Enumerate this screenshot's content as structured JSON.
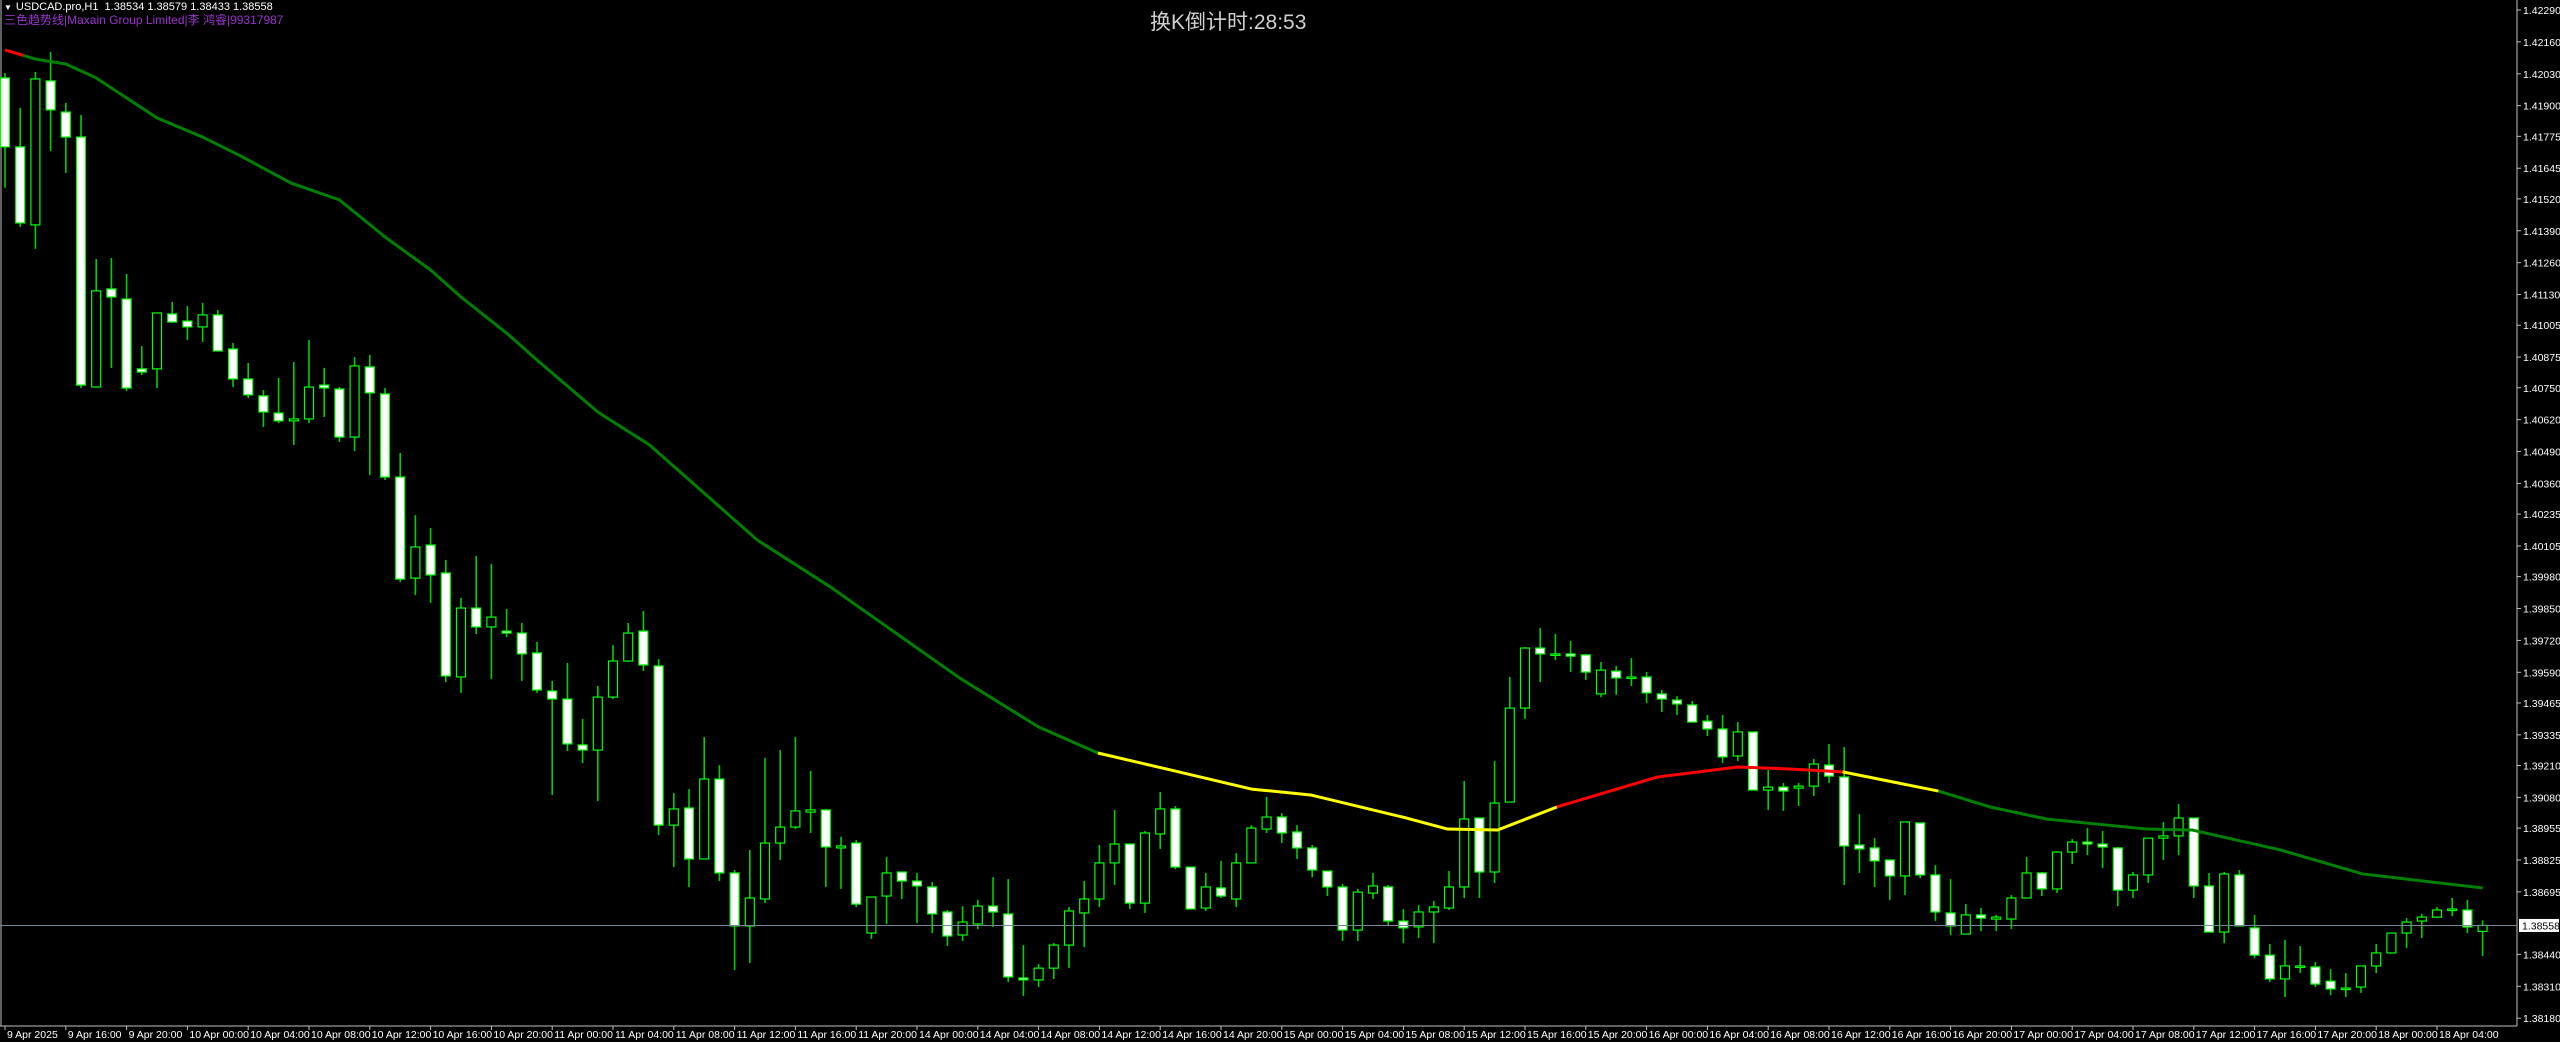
{
  "header": {
    "symbol_line": "USDCAD.pro,H1  1.38534 1.38579 1.38433 1.38558",
    "indicator_line": "三色趋势线|Maxain Group Limited|李 鸿睿|99317987",
    "countdown": "换K倒计时:28:53",
    "menu_icon": "triangle-down-icon"
  },
  "colors": {
    "background": "#000000",
    "candle_outline": "#00ff00",
    "bear_body": "#ffffff",
    "bull_body": "#000000",
    "ma_green": "#008000",
    "ma_yellow": "#ffff00",
    "ma_red": "#ff0000",
    "price_line": "#778899",
    "indicator_text": "#9a32cd"
  },
  "chart_data": {
    "type": "candlestick",
    "symbol": "USDCAD.pro",
    "timeframe": "H1",
    "current_price": 1.38558,
    "ylim": [
      1.3818,
      1.4229
    ],
    "grid": false,
    "price_ticks": [
      "1.42290",
      "1.42160",
      "1.42030",
      "1.41900",
      "1.41775",
      "1.41645",
      "1.41520",
      "1.41390",
      "1.41260",
      "1.41130",
      "1.41005",
      "1.40875",
      "1.40750",
      "1.40620",
      "1.40490",
      "1.40360",
      "1.40235",
      "1.40105",
      "1.39980",
      "1.39850",
      "1.39720",
      "1.39590",
      "1.39465",
      "1.39335",
      "1.39210",
      "1.39080",
      "1.38955",
      "1.38825",
      "1.38695",
      "1.38440",
      "1.38310",
      "1.38180"
    ],
    "time_labels": [
      "9 Apr 2025",
      "9 Apr 16:00",
      "9 Apr 20:00",
      "10 Apr 00:00",
      "10 Apr 04:00",
      "10 Apr 08:00",
      "10 Apr 12:00",
      "10 Apr 16:00",
      "10 Apr 20:00",
      "11 Apr 00:00",
      "11 Apr 04:00",
      "11 Apr 08:00",
      "11 Apr 12:00",
      "11 Apr 16:00",
      "11 Apr 20:00",
      "14 Apr 00:00",
      "14 Apr 04:00",
      "14 Apr 08:00",
      "14 Apr 12:00",
      "14 Apr 16:00",
      "14 Apr 20:00",
      "15 Apr 00:00",
      "15 Apr 04:00",
      "15 Apr 08:00",
      "15 Apr 12:00",
      "15 Apr 16:00",
      "15 Apr 20:00",
      "16 Apr 00:00",
      "16 Apr 04:00",
      "16 Apr 08:00",
      "16 Apr 12:00",
      "16 Apr 16:00",
      "16 Apr 20:00",
      "17 Apr 00:00",
      "17 Apr 04:00",
      "17 Apr 08:00",
      "17 Apr 12:00",
      "17 Apr 16:00",
      "17 Apr 20:00",
      "18 Apr 00:00",
      "18 Apr 04:00"
    ],
    "ohlc_fields": [
      "open",
      "high",
      "low",
      "close"
    ],
    "candles": [
      [
        1.42013,
        1.42033,
        1.41565,
        1.41732
      ],
      [
        1.41732,
        1.41891,
        1.41406,
        1.41422
      ],
      [
        1.41414,
        1.42037,
        1.41316,
        1.42009
      ],
      [
        1.42001,
        1.42119,
        1.41715,
        1.41883
      ],
      [
        1.41874,
        1.41911,
        1.41626,
        1.41772
      ],
      [
        1.41772,
        1.41862,
        1.40749,
        1.40761
      ],
      [
        1.40753,
        1.41275,
        1.40753,
        1.41145
      ],
      [
        1.41153,
        1.41279,
        1.40831,
        1.4112
      ],
      [
        1.41112,
        1.41214,
        1.40737,
        1.40749
      ],
      [
        1.40827,
        1.4092,
        1.40802,
        1.40814
      ],
      [
        1.40827,
        1.41055,
        1.40749,
        1.41055
      ],
      [
        1.41051,
        1.411,
        1.41014,
        1.41018
      ],
      [
        1.41022,
        1.41083,
        1.40945,
        1.40998
      ],
      [
        1.40998,
        1.41096,
        1.40937,
        1.41047
      ],
      [
        1.41047,
        1.41067,
        1.409,
        1.409
      ],
      [
        1.40908,
        1.40933,
        1.40753,
        1.40786
      ],
      [
        1.40786,
        1.40851,
        1.40708,
        1.40721
      ],
      [
        1.40717,
        1.40741,
        1.4059,
        1.40651
      ],
      [
        1.40647,
        1.4079,
        1.40606,
        1.40615
      ],
      [
        1.40615,
        1.40855,
        1.40517,
        1.40623
      ],
      [
        1.40623,
        1.40945,
        1.40606,
        1.40753
      ],
      [
        1.40761,
        1.40831,
        1.40631,
        1.40749
      ],
      [
        1.40745,
        1.40753,
        1.40529,
        1.40549
      ],
      [
        1.40549,
        1.40875,
        1.40492,
        1.40839
      ],
      [
        1.40835,
        1.40884,
        1.40394,
        1.40729
      ],
      [
        1.40725,
        1.40749,
        1.40374,
        1.40386
      ],
      [
        1.40386,
        1.40484,
        1.39958,
        1.3997
      ],
      [
        1.39974,
        1.40231,
        1.39905,
        1.40101
      ],
      [
        1.40109,
        1.40178,
        1.39873,
        1.39987
      ],
      [
        1.39995,
        1.40048,
        1.3955,
        1.39575
      ],
      [
        1.39571,
        1.39893,
        1.39506,
        1.39852
      ],
      [
        1.39852,
        1.40064,
        1.39746,
        1.39775
      ],
      [
        1.39775,
        1.40032,
        1.39563,
        1.39815
      ],
      [
        1.39758,
        1.39848,
        1.39734,
        1.3975
      ],
      [
        1.3975,
        1.39791,
        1.39555,
        1.39665
      ],
      [
        1.39669,
        1.39714,
        1.39506,
        1.39518
      ],
      [
        1.39514,
        1.39555,
        1.3909,
        1.39481
      ],
      [
        1.39481,
        1.39628,
        1.39269,
        1.39298
      ],
      [
        1.39294,
        1.394,
        1.3922,
        1.39273
      ],
      [
        1.39273,
        1.39534,
        1.39065,
        1.39489
      ],
      [
        1.39489,
        1.39701,
        1.39481,
        1.39636
      ],
      [
        1.39636,
        1.39791,
        1.39632,
        1.3975
      ],
      [
        1.39758,
        1.3984,
        1.39595,
        1.3962
      ],
      [
        1.39616,
        1.39644,
        1.38927,
        1.38967
      ],
      [
        1.38967,
        1.39098,
        1.38796,
        1.39033
      ],
      [
        1.39037,
        1.39114,
        1.38715,
        1.38829
      ],
      [
        1.38829,
        1.39326,
        1.38829,
        1.39155
      ],
      [
        1.39155,
        1.39212,
        1.38739,
        1.38772
      ],
      [
        1.38772,
        1.38784,
        1.38376,
        1.38556
      ],
      [
        1.38556,
        1.38866,
        1.38405,
        1.3867
      ],
      [
        1.38666,
        1.39241,
        1.38649,
        1.38894
      ],
      [
        1.38894,
        1.39273,
        1.38825,
        1.38959
      ],
      [
        1.38959,
        1.39326,
        1.38951,
        1.39025
      ],
      [
        1.3902,
        1.39188,
        1.38935,
        1.39029
      ],
      [
        1.39029,
        1.39033,
        1.38715,
        1.38878
      ],
      [
        1.38874,
        1.38919,
        1.38707,
        1.38882
      ],
      [
        1.38894,
        1.38906,
        1.38633,
        1.38645
      ],
      [
        1.38527,
        1.38674,
        1.38503,
        1.38674
      ],
      [
        1.38678,
        1.38837,
        1.38564,
        1.38772
      ],
      [
        1.38776,
        1.38776,
        1.38666,
        1.38739
      ],
      [
        1.38739,
        1.38772,
        1.38568,
        1.38719
      ],
      [
        1.38715,
        1.38735,
        1.38527,
        1.38605
      ],
      [
        1.38613,
        1.38621,
        1.38474,
        1.38515
      ],
      [
        1.38519,
        1.38637,
        1.38495,
        1.38572
      ],
      [
        1.38564,
        1.38662,
        1.38543,
        1.38637
      ],
      [
        1.38637,
        1.38755,
        1.38552,
        1.38613
      ],
      [
        1.38605,
        1.38747,
        1.38327,
        1.38348
      ],
      [
        1.38344,
        1.38478,
        1.3827,
        1.38336
      ],
      [
        1.38336,
        1.38401,
        1.38307,
        1.38384
      ],
      [
        1.38384,
        1.38486,
        1.3834,
        1.38478
      ],
      [
        1.38478,
        1.38633,
        1.38384,
        1.38617
      ],
      [
        1.38609,
        1.38739,
        1.3847,
        1.38666
      ],
      [
        1.38666,
        1.38886,
        1.38633,
        1.38813
      ],
      [
        1.38813,
        1.39029,
        1.38723,
        1.3889
      ],
      [
        1.3889,
        1.3889,
        1.38625,
        1.38649
      ],
      [
        1.38649,
        1.38943,
        1.38609,
        1.38935
      ],
      [
        1.38931,
        1.39102,
        1.3887,
        1.39033
      ],
      [
        1.39033,
        1.39045,
        1.38788,
        1.38796
      ],
      [
        1.38796,
        1.38796,
        1.38625,
        1.38625
      ],
      [
        1.38629,
        1.38772,
        1.38617,
        1.38715
      ],
      [
        1.38711,
        1.38821,
        1.3867,
        1.38678
      ],
      [
        1.38666,
        1.38853,
        1.38633,
        1.38813
      ],
      [
        1.38813,
        1.38967,
        1.38813,
        1.38955
      ],
      [
        1.38951,
        1.39082,
        1.38935,
        1.39
      ],
      [
        1.39,
        1.39016,
        1.38894,
        1.38935
      ],
      [
        1.38939,
        1.38967,
        1.38829,
        1.38874
      ],
      [
        1.38874,
        1.38886,
        1.38755,
        1.38784
      ],
      [
        1.3878,
        1.3878,
        1.38678,
        1.38715
      ],
      [
        1.38715,
        1.38727,
        1.38495,
        1.38539
      ],
      [
        1.38539,
        1.38707,
        1.38495,
        1.38694
      ],
      [
        1.3869,
        1.38772,
        1.38666,
        1.38719
      ],
      [
        1.38715,
        1.38723,
        1.38556,
        1.38576
      ],
      [
        1.38576,
        1.38625,
        1.38486,
        1.38548
      ],
      [
        1.38552,
        1.38641,
        1.38507,
        1.38613
      ],
      [
        1.38613,
        1.38658,
        1.38486,
        1.38633
      ],
      [
        1.38629,
        1.3878,
        1.38621,
        1.38715
      ],
      [
        1.38715,
        1.39147,
        1.3867,
        1.38992
      ],
      [
        1.38996,
        1.38996,
        1.3867,
        1.38776
      ],
      [
        1.38776,
        1.39228,
        1.38731,
        1.39057
      ],
      [
        1.39061,
        1.39571,
        1.39061,
        1.39444
      ],
      [
        1.39444,
        1.39693,
        1.394,
        1.39689
      ],
      [
        1.39689,
        1.39771,
        1.3955,
        1.39665
      ],
      [
        1.39661,
        1.39746,
        1.3964,
        1.39665
      ],
      [
        1.39665,
        1.39718,
        1.39591,
        1.39656
      ],
      [
        1.39661,
        1.39665,
        1.39559,
        1.39591
      ],
      [
        1.39502,
        1.39632,
        1.39489,
        1.39599
      ],
      [
        1.39595,
        1.39616,
        1.39498,
        1.39567
      ],
      [
        1.39567,
        1.39648,
        1.39534,
        1.39571
      ],
      [
        1.39571,
        1.39591,
        1.39465,
        1.39506
      ],
      [
        1.39502,
        1.39518,
        1.39428,
        1.39481
      ],
      [
        1.39477,
        1.39493,
        1.39416,
        1.39461
      ],
      [
        1.39457,
        1.39473,
        1.39387,
        1.39387
      ],
      [
        1.39391,
        1.39416,
        1.3933,
        1.39359
      ],
      [
        1.39359,
        1.39416,
        1.3922,
        1.39245
      ],
      [
        1.39249,
        1.39387,
        1.39228,
        1.39347
      ],
      [
        1.39347,
        1.39347,
        1.3911,
        1.3911
      ],
      [
        1.3911,
        1.39192,
        1.39029,
        1.39122
      ],
      [
        1.39122,
        1.39139,
        1.39025,
        1.39106
      ],
      [
        1.39118,
        1.39139,
        1.39045,
        1.39126
      ],
      [
        1.39126,
        1.39237,
        1.39086,
        1.39216
      ],
      [
        1.39212,
        1.39298,
        1.39139,
        1.39167
      ],
      [
        1.39163,
        1.39285,
        1.38723,
        1.38882
      ],
      [
        1.38886,
        1.39012,
        1.38772,
        1.3887
      ],
      [
        1.38874,
        1.38914,
        1.38715,
        1.38821
      ],
      [
        1.38825,
        1.38825,
        1.38662,
        1.3876
      ],
      [
        1.3876,
        1.3898,
        1.38682,
        1.3898
      ],
      [
        1.38976,
        1.38976,
        1.38751,
        1.38764
      ],
      [
        1.38764,
        1.38804,
        1.38576,
        1.38613
      ],
      [
        1.38609,
        1.38747,
        1.38519,
        1.38556
      ],
      [
        1.38523,
        1.38645,
        1.38523,
        1.38601
      ],
      [
        1.38601,
        1.38629,
        1.38535,
        1.38588
      ],
      [
        1.38584,
        1.38601,
        1.38535,
        1.38592
      ],
      [
        1.38584,
        1.38682,
        1.38543,
        1.3867
      ],
      [
        1.3867,
        1.38837,
        1.3867,
        1.38772
      ],
      [
        1.38772,
        1.38776,
        1.38678,
        1.38707
      ],
      [
        1.38707,
        1.38861,
        1.3869,
        1.38857
      ],
      [
        1.38857,
        1.3891,
        1.38809,
        1.38898
      ],
      [
        1.38898,
        1.38955,
        1.38845,
        1.3889
      ],
      [
        1.3889,
        1.38943,
        1.38792,
        1.38878
      ],
      [
        1.38874,
        1.38878,
        1.38637,
        1.38702
      ],
      [
        1.38702,
        1.38776,
        1.3867,
        1.38764
      ],
      [
        1.38764,
        1.38914,
        1.38731,
        1.38914
      ],
      [
        1.38914,
        1.3898,
        1.38825,
        1.38923
      ],
      [
        1.38923,
        1.39053,
        1.38845,
        1.38996
      ],
      [
        1.38996,
        1.38996,
        1.3867,
        1.38719
      ],
      [
        1.38719,
        1.38772,
        1.38531,
        1.38531
      ],
      [
        1.38531,
        1.38776,
        1.38486,
        1.38768
      ],
      [
        1.38764,
        1.38784,
        1.38556,
        1.38556
      ],
      [
        1.38548,
        1.38601,
        1.38425,
        1.38437
      ],
      [
        1.38437,
        1.38482,
        1.38327,
        1.3834
      ],
      [
        1.3834,
        1.38499,
        1.38266,
        1.38393
      ],
      [
        1.38389,
        1.38474,
        1.38364,
        1.38393
      ],
      [
        1.38389,
        1.38409,
        1.38307,
        1.38319
      ],
      [
        1.38331,
        1.3838,
        1.38274,
        1.38299
      ],
      [
        1.38299,
        1.38364,
        1.38266,
        1.38303
      ],
      [
        1.38307,
        1.38393,
        1.38283,
        1.38393
      ],
      [
        1.38393,
        1.38482,
        1.38364,
        1.38446
      ],
      [
        1.38446,
        1.38527,
        1.38446,
        1.38527
      ],
      [
        1.38527,
        1.38588,
        1.38466,
        1.38572
      ],
      [
        1.38576,
        1.38605,
        1.38507,
        1.38592
      ],
      [
        1.38592,
        1.38633,
        1.38588,
        1.38621
      ],
      [
        1.38621,
        1.3867,
        1.38596,
        1.38625
      ],
      [
        1.38621,
        1.38662,
        1.38527,
        1.38552
      ],
      [
        1.38534,
        1.38579,
        1.38433,
        1.38558
      ]
    ],
    "moving_average": {
      "points": [
        [
          1,
          1.42127
        ],
        [
          3,
          1.4209
        ],
        [
          5,
          1.4207
        ],
        [
          7,
          1.42013
        ],
        [
          11,
          1.4185
        ],
        [
          14,
          1.41772
        ],
        [
          16.5,
          1.41695
        ],
        [
          19.8,
          1.41585
        ],
        [
          23,
          1.41516
        ],
        [
          26,
          1.41365
        ],
        [
          29,
          1.4123
        ],
        [
          31,
          1.4112
        ],
        [
          34,
          1.40973
        ],
        [
          36,
          1.40863
        ],
        [
          40,
          1.40651
        ],
        [
          43.4,
          1.40517
        ],
        [
          50.5,
          1.40129
        ],
        [
          55.3,
          1.39938
        ],
        [
          63.8,
          1.39567
        ],
        [
          69,
          1.39367
        ],
        [
          72.9,
          1.39261
        ],
        [
          77.4,
          1.39196
        ],
        [
          83,
          1.39114
        ],
        [
          86.9,
          1.3909
        ],
        [
          93.2,
          1.38996
        ],
        [
          95.9,
          1.38951
        ],
        [
          99.2,
          1.38947
        ],
        [
          103.1,
          1.39041
        ],
        [
          109.7,
          1.39163
        ],
        [
          115,
          1.39204
        ],
        [
          118.4,
          1.39196
        ],
        [
          121.9,
          1.39184
        ],
        [
          128.2,
          1.39106
        ],
        [
          131.6,
          1.39041
        ],
        [
          135.3,
          1.38992
        ],
        [
          141.9,
          1.38951
        ],
        [
          144.9,
          1.38947
        ],
        [
          150.7,
          1.38866
        ],
        [
          156.1,
          1.38768
        ],
        [
          164,
          1.38711
        ]
      ],
      "segments": [
        {
          "from": 1,
          "to": 2.2,
          "color": "#ff0000"
        },
        {
          "from": 2.2,
          "to": 72.9,
          "color": "#008000"
        },
        {
          "from": 72.9,
          "to": 103.1,
          "color": "#ffff00"
        },
        {
          "from": 103.1,
          "to": 121.9,
          "color": "#ff0000"
        },
        {
          "from": 121.9,
          "to": 128.2,
          "color": "#ffff00"
        },
        {
          "from": 128.2,
          "to": 164,
          "color": "#008000"
        }
      ]
    }
  }
}
